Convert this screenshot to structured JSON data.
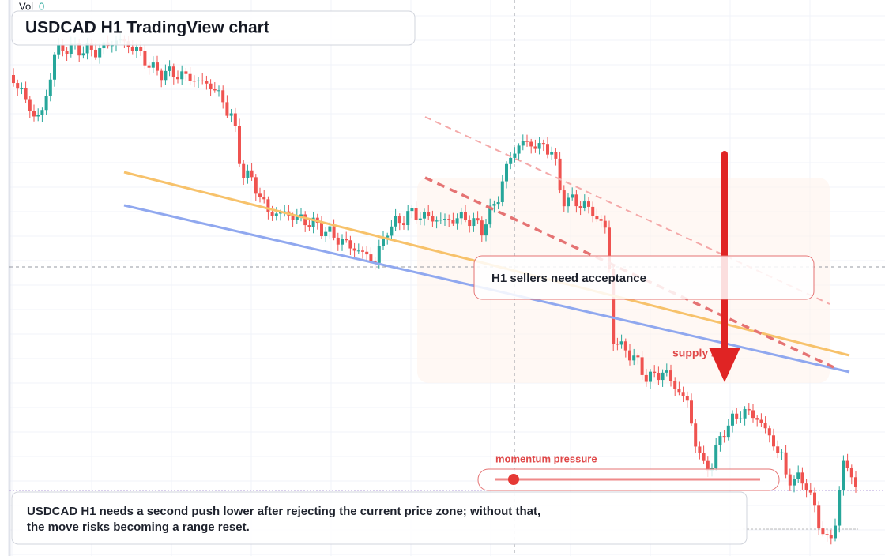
{
  "header": {
    "vol_label": "Vol",
    "vol_value": "0",
    "title": "USDCAD H1 TradingView chart"
  },
  "annotations": {
    "callout": "H1 sellers need acceptance",
    "zone": "supply zone",
    "momentum": "momentum pressure"
  },
  "caption": {
    "lines": [
      "USDCAD H1 needs a second push lower after rejecting the current price zone; without that,",
      "the move risks becoming a range reset."
    ]
  }
}
